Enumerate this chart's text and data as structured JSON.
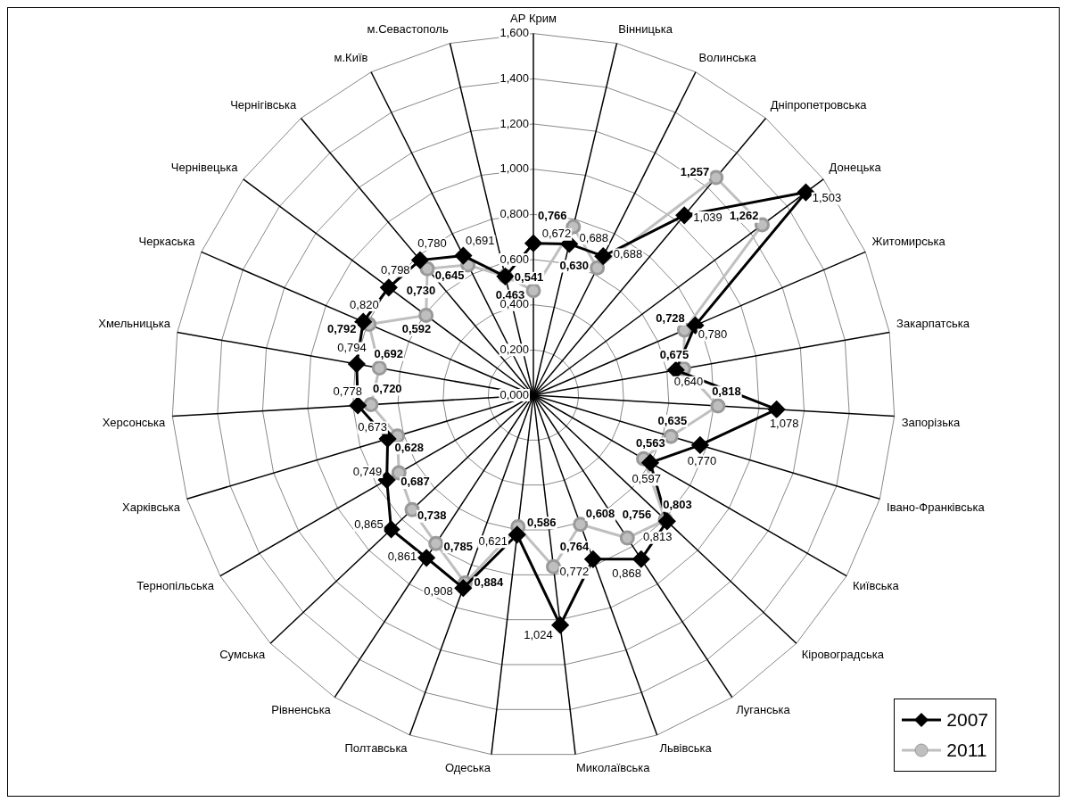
{
  "chart_data": {
    "type": "radar",
    "categories": [
      "АР Крим",
      "Вінницька",
      "Волинська",
      "Дніпропетровська",
      "Донецька",
      "Житомирська",
      "Закарпатська",
      "Запорізька",
      "Івано-Франківська",
      "Київська",
      "Кіровоградська",
      "Луганська",
      "Львівська",
      "Миколаївська",
      "Одеська",
      "Полтавська",
      "Рівненська",
      "Сумська",
      "Тернопільська",
      "Харківська",
      "Херсонська",
      "Хмельницька",
      "Черкаська",
      "Чернівецька",
      "Чернігівська",
      "м.Київ",
      "м.Севастополь"
    ],
    "series": [
      {
        "name": "2007",
        "color": "#000000",
        "marker": "diamond",
        "values": [
          0.672,
          0.688,
          0.688,
          1.039,
          1.503,
          0.78,
          0.64,
          1.078,
          0.77,
          0.597,
          0.813,
          0.868,
          0.772,
          1.024,
          0.621,
          0.908,
          0.861,
          0.865,
          0.749,
          0.673,
          0.778,
          0.794,
          0.82,
          0.798,
          0.78,
          0.691,
          0.54
        ],
        "value_labels": [
          "0,672",
          "0,688",
          "0,688",
          "1,039",
          "1,503",
          "0,780",
          "0,640",
          "1,078",
          "0,770",
          "0,597",
          "0,813",
          "0,868",
          "0,772",
          "1,024",
          "0,621",
          "0,908",
          "0,861",
          "0,865",
          "0,749",
          "0,673",
          "0,778",
          "0,794",
          "0,820",
          "0,798",
          "0,780",
          "0,691",
          null
        ]
      },
      {
        "name": "2011",
        "color": "#bfbfbf",
        "marker": "circle",
        "values": [
          0.463,
          0.766,
          0.63,
          1.257,
          1.262,
          0.728,
          0.675,
          0.818,
          0.635,
          0.563,
          0.803,
          0.756,
          0.608,
          0.764,
          0.586,
          0.884,
          0.785,
          0.738,
          0.687,
          0.628,
          0.72,
          0.692,
          0.792,
          0.592,
          0.73,
          0.645,
          0.541
        ],
        "value_labels": [
          "0,463",
          "0,766",
          "0,630",
          "1,257",
          "1,262",
          "0,728",
          "0,675",
          "0,818",
          "0,635",
          "0,563",
          "0,803",
          "0,756",
          "0,608",
          "0,764",
          "0,586",
          "0,884",
          "0,785",
          "0,738",
          "0,687",
          "0,628",
          "0,720",
          "0,692",
          "0,792",
          "0,592",
          "0,730",
          "0,645",
          "0,541"
        ]
      }
    ],
    "ylim": [
      0,
      1.6
    ],
    "yticks": [
      {
        "value": 0,
        "label": "0,000"
      },
      {
        "value": 0.2,
        "label": "0,200"
      },
      {
        "value": 0.4,
        "label": "0,400"
      },
      {
        "value": 0.6,
        "label": "0,600"
      },
      {
        "value": 0.8,
        "label": "0,800"
      },
      {
        "value": 1,
        "label": "1,000"
      },
      {
        "value": 1.2,
        "label": "1,200"
      },
      {
        "value": 1.4,
        "label": "1,400"
      },
      {
        "value": 1.6,
        "label": "1,600"
      }
    ],
    "grid": true,
    "legend": "bottom right"
  }
}
